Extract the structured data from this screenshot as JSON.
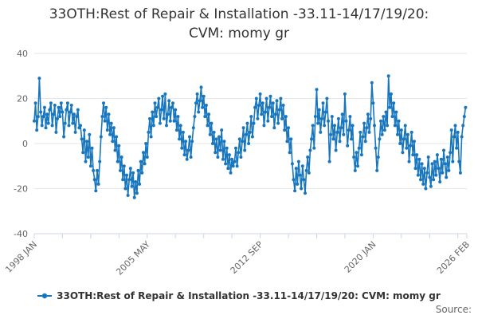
{
  "title": {
    "line1": "33OTH:Rest of Repair & Installation -33.11-14/17/19/20:",
    "line2": "CVM: momy gr"
  },
  "legend": {
    "items": [
      {
        "label": "33OTH:Rest of Repair & Installation -33.11-14/17/19/20: CVM: momy gr",
        "marker": "line-with-dot-icon"
      }
    ]
  },
  "footer": {
    "source_label": "Source:"
  },
  "colors": {
    "series": "#1776be",
    "grid": "#e6e6e6",
    "axis_line": "#ccd6eb",
    "axis_label": "#666666",
    "title": "#333333",
    "background": "#ffffff"
  },
  "chart_data": {
    "type": "line",
    "title": "33OTH:Rest of Repair & Installation -33.11-14/17/19/20: CVM: momy gr",
    "xlabel": "",
    "ylabel": "",
    "x_unit": "month",
    "x_start": "1998 JAN",
    "x_end": "2026 JAN",
    "x_total_months": 337,
    "x_minor_tick_interval_months": 22,
    "x_tick_labels": [
      "1998 JAN",
      "2005 MAY",
      "2012 SEP",
      "2020 JAN",
      "2026 FEB"
    ],
    "x_tick_month_offsets": [
      0,
      88,
      176,
      264,
      337
    ],
    "y_ticks": [
      40,
      20,
      0,
      -20,
      -40
    ],
    "ylim": [
      -40,
      40
    ],
    "grid": "horizontal",
    "legend_position": "bottom",
    "marker": "circle",
    "series": [
      {
        "name": "33OTH:Rest of Repair & Installation -33.11-14/17/19/20: CVM: momy gr",
        "color": "#1776be",
        "values": [
          10,
          18,
          6,
          12,
          29,
          14,
          8,
          12,
          16,
          7,
          13,
          9,
          15,
          18,
          8,
          13,
          17,
          5,
          11,
          16,
          12,
          18,
          14,
          3,
          9,
          15,
          18,
          8,
          14,
          17,
          9,
          13,
          5,
          12,
          15,
          7,
          8,
          2,
          -4,
          6,
          -8,
          1,
          -6,
          4,
          -10,
          -2,
          -12,
          -16,
          -21,
          -12,
          -18,
          -8,
          3,
          12,
          18,
          10,
          16,
          6,
          13,
          4,
          9,
          1,
          7,
          -3,
          3,
          -8,
          -1,
          -12,
          -6,
          -16,
          -10,
          -20,
          -14,
          -23,
          -16,
          -11,
          -19,
          -13,
          -24,
          -17,
          -22,
          -12,
          -18,
          -8,
          -13,
          -4,
          -9,
          0,
          -6,
          5,
          11,
          3,
          14,
          8,
          18,
          12,
          16,
          20,
          9,
          15,
          21,
          11,
          22,
          8,
          13,
          19,
          10,
          16,
          18,
          10,
          15,
          6,
          12,
          2,
          8,
          -2,
          5,
          -5,
          1,
          -7,
          -3,
          3,
          -6,
          1,
          7,
          12,
          18,
          22,
          14,
          19,
          25,
          16,
          21,
          12,
          17,
          8,
          13,
          4,
          9,
          0,
          5,
          -4,
          2,
          -6,
          3,
          -3,
          6,
          -7,
          1,
          -9,
          -2,
          -11,
          -5,
          -13,
          -7,
          -10,
          -8,
          -2,
          -10,
          -4,
          2,
          -6,
          1,
          7,
          -3,
          4,
          9,
          0,
          5,
          12,
          3,
          9,
          16,
          20,
          11,
          17,
          22,
          13,
          18,
          8,
          14,
          20,
          10,
          16,
          21,
          12,
          18,
          7,
          13,
          19,
          9,
          15,
          20,
          11,
          17,
          6,
          12,
          1,
          7,
          -4,
          2,
          -9,
          -16,
          -21,
          -11,
          -18,
          -8,
          -14,
          -20,
          -10,
          -16,
          -22,
          -12,
          -6,
          -13,
          -3,
          2,
          8,
          -2,
          12,
          24,
          9,
          15,
          5,
          11,
          18,
          8,
          14,
          20,
          10,
          -8,
          4,
          12,
          2,
          8,
          -3,
          5,
          11,
          1,
          7,
          13,
          4,
          22,
          10,
          -1,
          6,
          12,
          2,
          8,
          -6,
          -12,
          -4,
          -10,
          -2,
          5,
          -5,
          3,
          9,
          1,
          7,
          13,
          5,
          11,
          27,
          18,
          8,
          -2,
          -12,
          -6,
          2,
          10,
          4,
          12,
          6,
          14,
          8,
          30,
          16,
          22,
          12,
          18,
          8,
          14,
          4,
          10,
          0,
          6,
          -4,
          2,
          8,
          -2,
          4,
          -8,
          -1,
          5,
          -5,
          1,
          -11,
          -5,
          -14,
          -7,
          -16,
          -9,
          -18,
          -11,
          -20,
          -13,
          -6,
          -15,
          -19,
          -9,
          -16,
          -8,
          -14,
          -5,
          -11,
          -17,
          -7,
          -13,
          -3,
          -9,
          -15,
          -6,
          -12,
          -4,
          6,
          -8,
          3,
          8,
          -2,
          5,
          -8,
          -13,
          3,
          8,
          12,
          16
        ]
      }
    ]
  }
}
